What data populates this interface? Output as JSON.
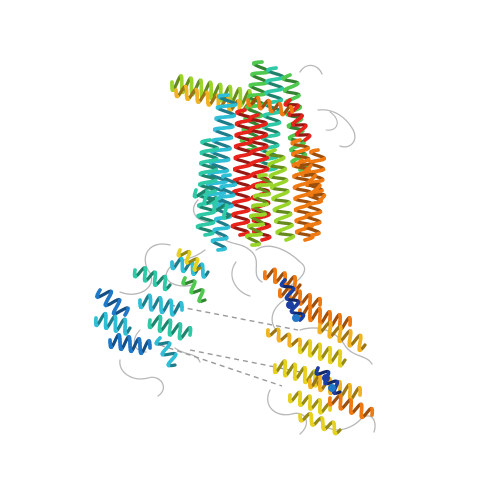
{
  "scene": {
    "background": "#ffffff",
    "rendering_style": "cartoon ribbon (helices and coils)",
    "palette": {
      "red": "#e8231b",
      "orange": "#f07a12",
      "gold": "#f2b320",
      "yellow": "#e6d21e",
      "lime": "#9ad62a",
      "green": "#4fc94f",
      "teal": "#2ec9a6",
      "cyan": "#2fbfd6",
      "blue": "#1f78c8",
      "navy": "#1a3fa0",
      "coil": "#b8b8b8",
      "dashed_link": "#9a9a9a"
    },
    "regions": [
      {
        "name": "transmembrane-helix-bundle",
        "dominant_colors": [
          "red",
          "orange",
          "green",
          "cyan",
          "lime"
        ]
      },
      {
        "name": "left-lobe-domain",
        "dominant_colors": [
          "cyan",
          "blue",
          "teal"
        ]
      },
      {
        "name": "lower-right-domain",
        "dominant_colors": [
          "yellow",
          "gold",
          "orange",
          "navy"
        ]
      }
    ]
  }
}
